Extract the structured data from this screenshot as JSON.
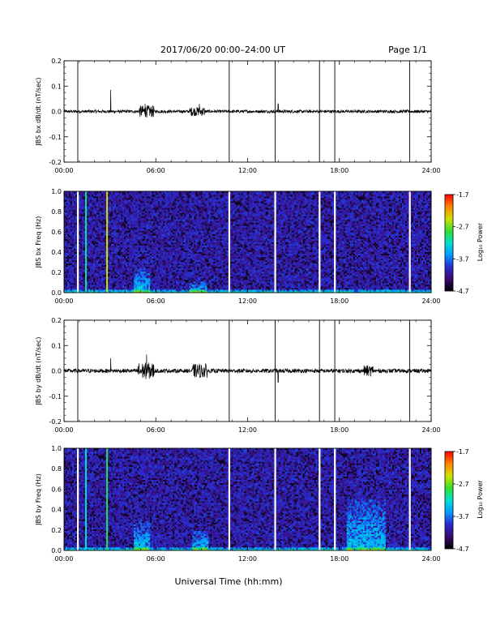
{
  "header": {
    "title": "2017/06/20  00:00–24:00 UT",
    "page": "Page 1/1"
  },
  "footer": {
    "xlabel": "Universal Time (hh:mm)"
  },
  "colors": {
    "trace": "#000000",
    "data_gap": "#ffffff",
    "colormap": [
      "#000000",
      "#3a0a6a",
      "#2a2ad0",
      "#00a0ff",
      "#00e0d0",
      "#30e030",
      "#d0e000",
      "#ff8000",
      "#ff0000"
    ]
  },
  "chart_data": [
    {
      "type": "line",
      "id": "bx_ts",
      "ylabel": "JBS bx dB/dt (nT/sec)",
      "xlim": [
        0,
        24
      ],
      "ylim": [
        -0.2,
        0.2
      ],
      "xticks": [
        "00:00",
        "06:00",
        "12:00",
        "18:00",
        "24:00"
      ],
      "yticks": [
        "0.2",
        "0.1",
        "0.0",
        "-0.1",
        "-0.2"
      ],
      "gap_markers_hours": [
        0.9,
        10.8,
        13.8,
        16.7,
        17.7,
        22.6
      ],
      "spikes": [
        {
          "t": 3.05,
          "value": 0.085
        },
        {
          "t": 5.3,
          "value": 0.03
        },
        {
          "t": 8.85,
          "value": 0.03
        },
        {
          "t": 14.0,
          "value": 0.03
        }
      ],
      "activity_bursts": [
        {
          "start": 4.9,
          "end": 5.9,
          "amplitude": 0.018
        },
        {
          "start": 8.2,
          "end": 9.2,
          "amplitude": 0.012
        }
      ],
      "noise_level": 0.006
    },
    {
      "type": "heatmap",
      "id": "bx_spec",
      "ylabel": "JBS bx Freq (Hz)",
      "xlim": [
        0,
        24
      ],
      "ylim": [
        0,
        1.0
      ],
      "xticks": [
        "00:00",
        "06:00",
        "12:00",
        "18:00",
        "24:00"
      ],
      "yticks": [
        "1.0",
        "0.8",
        "0.6",
        "0.4",
        "0.2",
        "0.0"
      ],
      "colorbar": {
        "label": "Log₁₀ Power",
        "range": [
          -4.7,
          -1.7
        ],
        "ticks": [
          "-1.7",
          "-2.7",
          "-3.7",
          "-4.7"
        ]
      },
      "white_gaps_hours": [
        0.9,
        10.8,
        13.8,
        16.7,
        17.7,
        22.6
      ],
      "bright_lines": [
        {
          "t": 1.4,
          "level": 0.55
        },
        {
          "t": 2.85,
          "level": 0.75
        }
      ],
      "low_freq_enhancements": [
        {
          "start": 4.6,
          "end": 5.6,
          "fmax": 0.25
        },
        {
          "start": 8.2,
          "end": 9.3,
          "fmax": 0.12
        }
      ]
    },
    {
      "type": "line",
      "id": "by_ts",
      "ylabel": "JBS by dB/dt (nT/sec)",
      "xlim": [
        0,
        24
      ],
      "ylim": [
        -0.2,
        0.2
      ],
      "xticks": [
        "00:00",
        "06:00",
        "12:00",
        "18:00",
        "24:00"
      ],
      "yticks": [
        "0.2",
        "0.1",
        "0.0",
        "-0.1",
        "-0.2"
      ],
      "gap_markers_hours": [
        0.9,
        10.8,
        13.8,
        16.7,
        17.7,
        22.6
      ],
      "spikes": [
        {
          "t": 3.05,
          "value": 0.05
        },
        {
          "t": 5.4,
          "value": 0.065
        },
        {
          "t": 14.0,
          "value": -0.045
        }
      ],
      "activity_bursts": [
        {
          "start": 4.8,
          "end": 5.9,
          "amplitude": 0.025
        },
        {
          "start": 8.4,
          "end": 9.4,
          "amplitude": 0.02
        },
        {
          "start": 19.6,
          "end": 20.2,
          "amplitude": 0.014
        }
      ],
      "noise_level": 0.008
    },
    {
      "type": "heatmap",
      "id": "by_spec",
      "ylabel": "JBS by Freq (Hz)",
      "xlim": [
        0,
        24
      ],
      "ylim": [
        0,
        1.0
      ],
      "xticks": [
        "00:00",
        "06:00",
        "12:00",
        "18:00",
        "24:00"
      ],
      "yticks": [
        "1.0",
        "0.8",
        "0.6",
        "0.4",
        "0.2",
        "0.0"
      ],
      "colorbar": {
        "label": "Log₁₀ Power",
        "range": [
          -4.7,
          -1.7
        ],
        "ticks": [
          "-1.7",
          "-2.7",
          "-3.7",
          "-4.7"
        ]
      },
      "white_gaps_hours": [
        0.9,
        10.8,
        13.8,
        16.7,
        17.7,
        22.6
      ],
      "bright_lines": [
        {
          "t": 1.4,
          "level": 0.5
        },
        {
          "t": 2.85,
          "level": 0.6
        }
      ],
      "low_freq_enhancements": [
        {
          "start": 4.6,
          "end": 5.6,
          "fmax": 0.3
        },
        {
          "start": 8.4,
          "end": 9.4,
          "fmax": 0.2
        },
        {
          "start": 18.5,
          "end": 21.0,
          "fmax": 0.5
        }
      ]
    }
  ]
}
